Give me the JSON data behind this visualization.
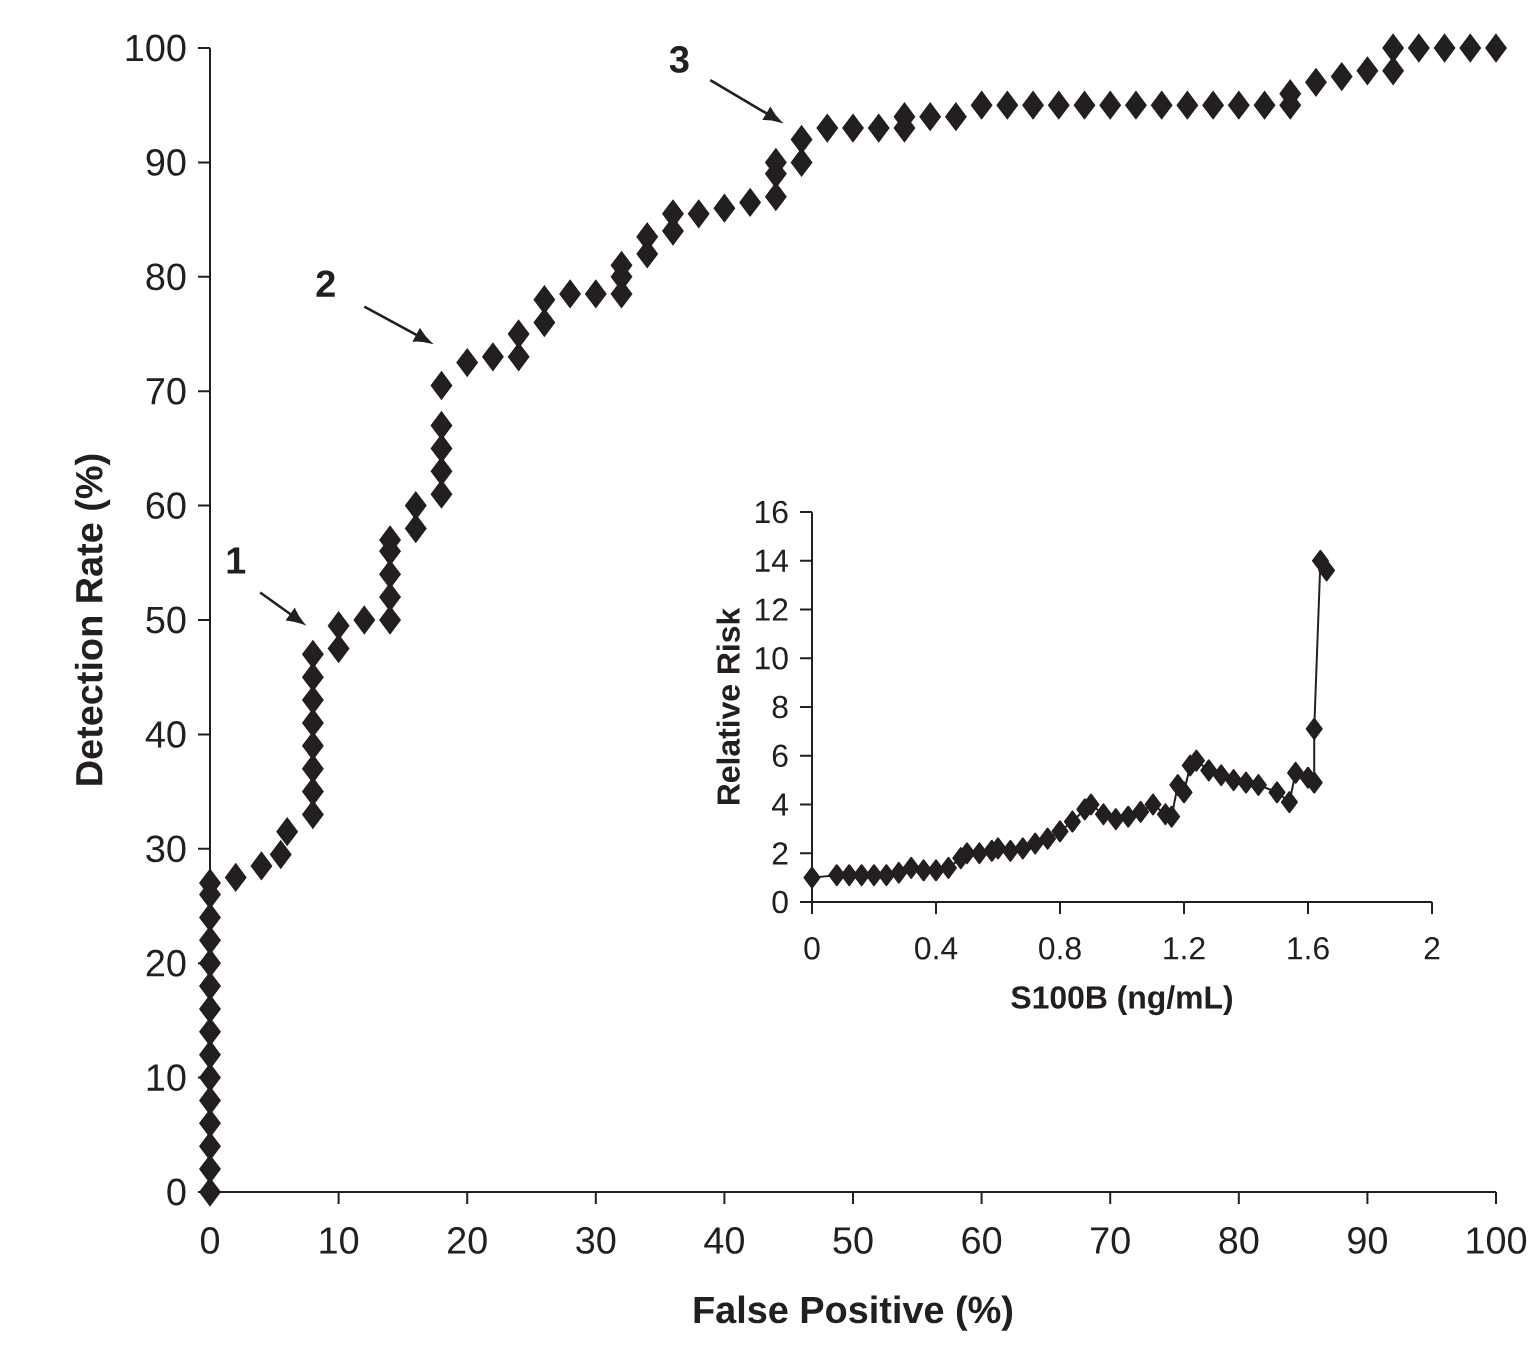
{
  "chart_data": [
    {
      "type": "scatter",
      "xlabel": "False Positive (%)",
      "ylabel": "Detection Rate (%)",
      "x": [
        0,
        0,
        0,
        0,
        0,
        0,
        0,
        0,
        0,
        0,
        0,
        0,
        0,
        0,
        0,
        2,
        4,
        5.5,
        6,
        8,
        8,
        8,
        8,
        8,
        8,
        8,
        8,
        10,
        10,
        12,
        14,
        14,
        14,
        14,
        14,
        16,
        16,
        18,
        18,
        18,
        18,
        18,
        20,
        22,
        24,
        24,
        26,
        26,
        28,
        30,
        32,
        32,
        32,
        34,
        34,
        36,
        36,
        38,
        40,
        42,
        44,
        44,
        44,
        46,
        46,
        48,
        50,
        52,
        54,
        54,
        56,
        58,
        60,
        62,
        64,
        66,
        68,
        70,
        72,
        74,
        76,
        78,
        80,
        82,
        84,
        84,
        86,
        88,
        90,
        92,
        92,
        94,
        96,
        98,
        100
      ],
      "series": [
        {
          "color": "#231f20",
          "values": [
            0,
            2,
            4,
            6,
            8,
            10,
            12,
            14,
            16,
            18,
            20,
            22,
            24,
            26,
            27,
            27.5,
            28.5,
            29.5,
            31.5,
            33,
            35,
            37,
            39,
            41,
            43,
            45,
            47,
            47.5,
            49.5,
            50,
            50,
            52,
            54,
            56,
            57,
            58,
            60,
            61,
            63,
            65,
            67,
            70.5,
            72.5,
            73,
            73,
            75,
            76,
            78,
            78.5,
            78.5,
            78.5,
            80,
            81,
            82,
            83.5,
            84,
            85.5,
            85.5,
            86,
            86.5,
            87,
            89,
            90,
            90,
            92,
            93,
            93,
            93,
            93,
            94,
            94,
            94,
            95,
            95,
            95,
            95,
            95,
            95,
            95,
            95,
            95,
            95,
            95,
            95,
            95,
            96,
            97,
            97.5,
            98,
            98,
            100,
            100,
            100,
            100,
            100
          ]
        }
      ],
      "xlim": [
        0,
        100
      ],
      "ylim": [
        0,
        100
      ],
      "xticks": [
        0,
        10,
        20,
        30,
        40,
        50,
        60,
        70,
        80,
        90,
        100
      ],
      "yticks": [
        0,
        10,
        20,
        30,
        40,
        50,
        60,
        70,
        80,
        90,
        100
      ],
      "marker": "diamond",
      "annotations": [
        "1",
        "2",
        "3"
      ]
    },
    {
      "type": "line",
      "xlabel": "S100B (ng/mL)",
      "ylabel": "Relative Risk",
      "x": [
        0,
        0.08,
        0.12,
        0.16,
        0.2,
        0.24,
        0.28,
        0.32,
        0.36,
        0.4,
        0.44,
        0.48,
        0.5,
        0.54,
        0.58,
        0.6,
        0.64,
        0.68,
        0.72,
        0.76,
        0.8,
        0.84,
        0.88,
        0.9,
        0.94,
        0.98,
        1.02,
        1.06,
        1.1,
        1.14,
        1.16,
        1.18,
        1.2,
        1.22,
        1.24,
        1.28,
        1.32,
        1.36,
        1.4,
        1.44,
        1.5,
        1.54,
        1.56,
        1.6,
        1.62,
        1.62,
        1.64,
        1.66
      ],
      "series": [
        {
          "color": "#231f20",
          "values": [
            1,
            1.1,
            1.1,
            1.1,
            1.1,
            1.1,
            1.2,
            1.4,
            1.3,
            1.3,
            1.4,
            1.8,
            2,
            2,
            2.1,
            2.2,
            2.1,
            2.2,
            2.4,
            2.6,
            2.9,
            3.3,
            3.8,
            4,
            3.6,
            3.4,
            3.5,
            3.7,
            4,
            3.6,
            3.5,
            4.8,
            4.5,
            5.6,
            5.8,
            5.4,
            5.2,
            5,
            4.9,
            4.8,
            4.5,
            4.1,
            5.3,
            5.1,
            4.9,
            7.1,
            14,
            13.6
          ]
        }
      ],
      "xlim": [
        0,
        2
      ],
      "ylim": [
        0,
        16
      ],
      "xticks": [
        0,
        0.4,
        0.8,
        1.2,
        1.6,
        2
      ],
      "yticks": [
        0,
        2,
        4,
        6,
        8,
        10,
        12,
        14,
        16
      ],
      "marker": "diamond"
    }
  ]
}
